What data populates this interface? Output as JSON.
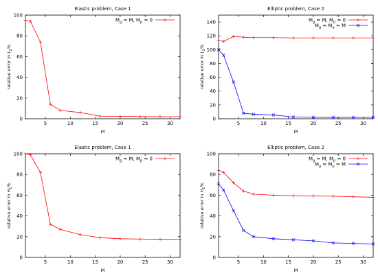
{
  "chart_data": [
    {
      "type": "line",
      "title": "Elastic problem, Case 1",
      "xlabel": "M",
      "ylabel": "relative error in L",
      "ylabel_sub": "2",
      "ylabel_suffix": "%",
      "xlim": [
        1,
        32
      ],
      "ylim": [
        0,
        100
      ],
      "xticks": [
        5,
        10,
        15,
        20,
        25,
        30
      ],
      "yticks": [
        0,
        20,
        40,
        60,
        80,
        100
      ],
      "grid": false,
      "legend_position": "top-right",
      "series": [
        {
          "name_parts": [
            "M",
            "g",
            " = M, M",
            "p",
            " = 0"
          ],
          "color": "#ff0000",
          "x": [
            1,
            2,
            4,
            6,
            8,
            12,
            16,
            20,
            24,
            28,
            32
          ],
          "y": [
            95,
            94,
            74,
            14,
            8,
            6,
            2.5,
            2.3,
            2.1,
            2,
            2
          ]
        }
      ]
    },
    {
      "type": "line",
      "title": "Elliptic problem, Case 2",
      "xlabel": "M",
      "ylabel": "relative error in L",
      "ylabel_sub": "2",
      "ylabel_suffix": "%",
      "xlim": [
        1,
        32
      ],
      "ylim": [
        0,
        150
      ],
      "xticks": [
        5,
        10,
        15,
        20,
        25,
        30
      ],
      "yticks": [
        0,
        20,
        40,
        60,
        80,
        100,
        120,
        140
      ],
      "grid": false,
      "legend_position": "top-right",
      "series": [
        {
          "name_parts": [
            "M",
            "g",
            " = M, M",
            "p",
            " = 0"
          ],
          "color": "#ff0000",
          "x": [
            1,
            2,
            4,
            6,
            8,
            12,
            16,
            20,
            24,
            28,
            32
          ],
          "y": [
            113,
            112,
            119,
            118,
            117.5,
            117.5,
            117,
            117,
            117,
            117,
            117
          ]
        },
        {
          "name_parts": [
            "M",
            "g",
            " = M",
            "p",
            " = M"
          ],
          "color": "#0000ff",
          "x": [
            1,
            2,
            4,
            6,
            8,
            12,
            16,
            20,
            24,
            28,
            32
          ],
          "y": [
            100,
            92,
            53,
            8,
            6.5,
            5.5,
            2.5,
            2,
            2,
            2,
            2
          ]
        }
      ]
    },
    {
      "type": "line",
      "title": "Elastic problem, Case 1",
      "xlabel": "M",
      "ylabel": "relative error in H",
      "ylabel_sub": "1",
      "ylabel_suffix": "%",
      "xlim": [
        1,
        32
      ],
      "ylim": [
        0,
        100
      ],
      "xticks": [
        5,
        10,
        15,
        20,
        25,
        30
      ],
      "yticks": [
        0,
        20,
        40,
        60,
        80,
        100
      ],
      "grid": false,
      "legend_position": "top-right",
      "series": [
        {
          "name_parts": [
            "M",
            "g",
            " = M, M",
            "p",
            " = 0"
          ],
          "color": "#ff0000",
          "x": [
            1,
            2,
            4,
            6,
            8,
            12,
            16,
            20,
            24,
            28,
            32
          ],
          "y": [
            100,
            99,
            82,
            32,
            27,
            22,
            19,
            18,
            17.7,
            17.5,
            17.3
          ]
        }
      ]
    },
    {
      "type": "line",
      "title": "Elliptic problem, Case 2",
      "xlabel": "M",
      "ylabel": "relative error in H",
      "ylabel_sub": "1",
      "ylabel_suffix": "%",
      "xlim": [
        1,
        32
      ],
      "ylim": [
        0,
        100
      ],
      "xticks": [
        5,
        10,
        15,
        20,
        25,
        30
      ],
      "yticks": [
        0,
        20,
        40,
        60,
        80,
        100
      ],
      "grid": false,
      "legend_position": "top-right",
      "series": [
        {
          "name_parts": [
            "M",
            "g",
            " = M, M",
            "p",
            " = 0"
          ],
          "color": "#ff0000",
          "x": [
            1,
            2,
            4,
            6,
            8,
            12,
            16,
            20,
            24,
            28,
            32
          ],
          "y": [
            84,
            82,
            72,
            64,
            61,
            60,
            59.5,
            59.3,
            59,
            58.5,
            58
          ]
        },
        {
          "name_parts": [
            "M",
            "g",
            " = M",
            "p",
            " = M"
          ],
          "color": "#0000ff",
          "x": [
            1,
            2,
            4,
            6,
            8,
            12,
            16,
            20,
            24,
            28,
            32
          ],
          "y": [
            71,
            65,
            45,
            26,
            20,
            18,
            17,
            16,
            14,
            13.5,
            13
          ]
        }
      ]
    }
  ]
}
